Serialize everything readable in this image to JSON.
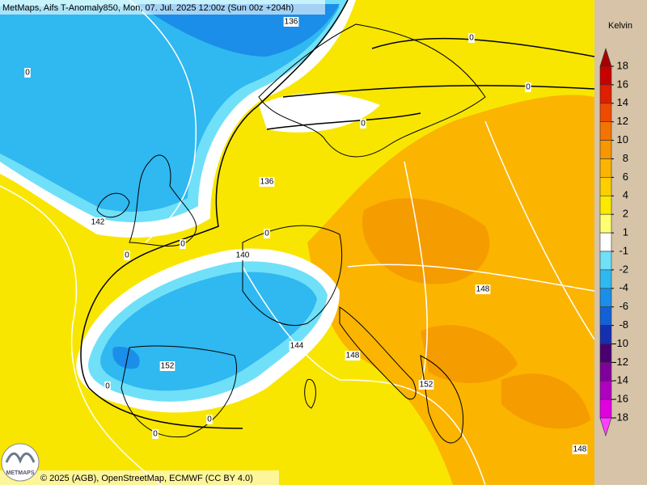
{
  "header": {
    "title": "MetMaps, Aifs T-Anomaly850, Mon, 07. Jul. 2025 12:00z (Sun 00z +204h)"
  },
  "colorbar": {
    "title": "Kelvin",
    "labels": [
      18,
      16,
      14,
      12,
      10,
      8,
      6,
      4,
      2,
      1,
      -1,
      -2,
      -4,
      -6,
      -8,
      -10,
      -12,
      -14,
      -16,
      -18
    ],
    "colors": [
      "#a80000",
      "#c80000",
      "#e01e00",
      "#ee4a00",
      "#f47400",
      "#f89600",
      "#fbb400",
      "#fdcf00",
      "#fbea00",
      "#ffff70",
      "#ffffff",
      "#70e0f8",
      "#30b8f0",
      "#1a8ee8",
      "#1460d8",
      "#1430b0",
      "#4a0070",
      "#80009c",
      "#b000c0",
      "#e000e0",
      "#ff40ff"
    ]
  },
  "contour_labels": [
    "136",
    "0",
    "0",
    "0",
    "0",
    "136",
    "142",
    "0",
    "0",
    "140",
    "0",
    "144",
    "148",
    "148",
    "152",
    "152",
    "0",
    "0",
    "0",
    "148"
  ],
  "footer": {
    "credit": "© 2025 (AGB), OpenStreetMap, ECMWF (CC BY 4.0)",
    "logo": "METMAPS"
  }
}
